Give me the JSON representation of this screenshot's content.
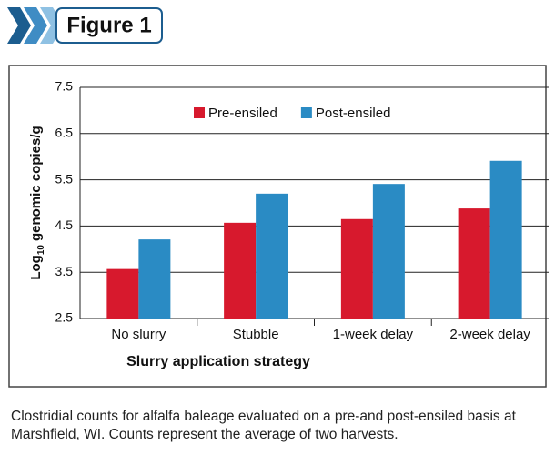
{
  "chart_data": {
    "type": "bar",
    "figure_label": "Figure 1",
    "ylabel": [
      "Log",
      "10",
      "genomic copies/g"
    ],
    "xlabel": "Slurry application strategy",
    "categories": [
      "No slurry",
      "Stubble",
      "1-week delay",
      "2-week delay"
    ],
    "series": [
      {
        "name": "Pre-ensiled",
        "color": "#d7192d",
        "values": [
          3.57,
          4.57,
          4.65,
          4.88
        ]
      },
      {
        "name": "Post-ensiled",
        "color": "#2a8bc4",
        "values": [
          4.21,
          5.2,
          5.41,
          5.91
        ]
      }
    ],
    "ylim": [
      2.5,
      7.5
    ],
    "yticks": [
      2.5,
      3.5,
      4.5,
      5.5,
      6.5,
      7.5
    ],
    "grid": true,
    "legend": "top",
    "caption": "Clostridial counts for alfalfa baleage evaluated on a pre-and post-ensiled basis at Marshfield, WI. Counts represent the average of two harvests."
  }
}
